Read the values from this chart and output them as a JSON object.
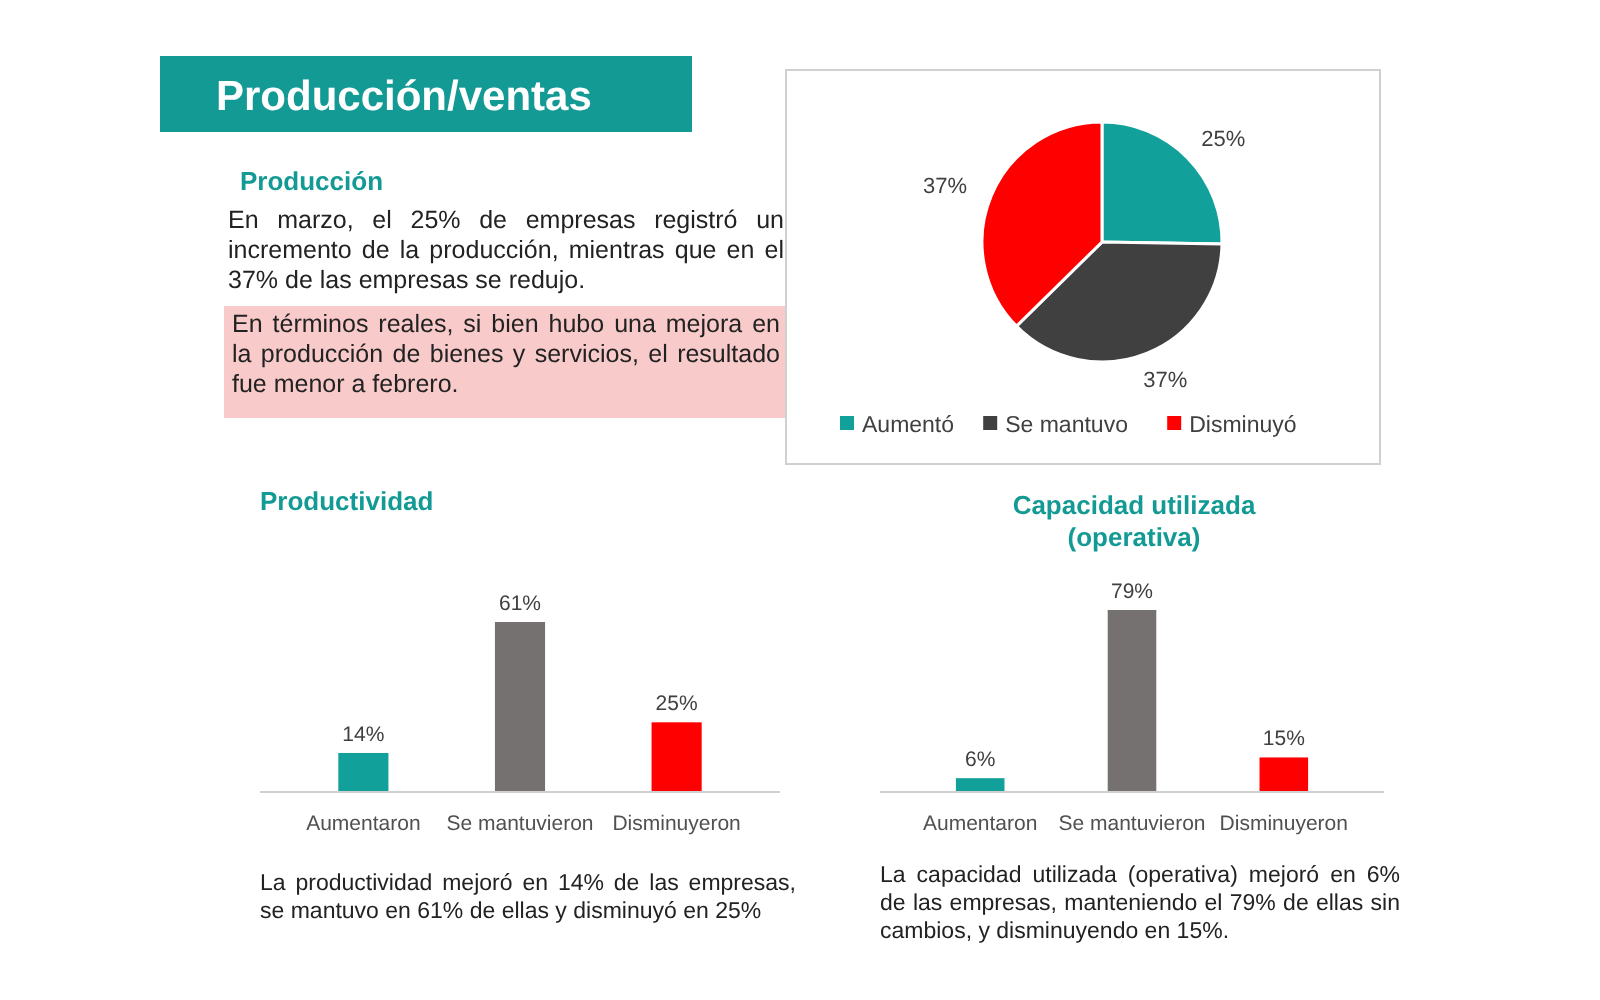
{
  "chart_data": [
    {
      "type": "other",
      "title": "Producción/ventas",
      "subtitle": "Producción",
      "annotations": [
        "En marzo, el 25% de empresas registró un incremento de la producción, mientras que en el 37% de las empresas se redujo.",
        "En términos reales, si bien hubo una mejora en la producción de bienes y servicios, el resultado fue menor a febrero."
      ]
    },
    {
      "type": "pie",
      "categories": [
        "Aumentó",
        "Se mantuvo",
        "Disminuyó"
      ],
      "values": [
        25,
        37,
        37
      ],
      "value_labels": [
        "25%",
        "37%",
        "37%"
      ],
      "colors": [
        "#12a09a",
        "#404040",
        "#ff0000"
      ],
      "legend": "bottom"
    },
    {
      "type": "bar",
      "title": "Productividad",
      "categories": [
        "Aumentaron",
        "Se mantuvieron",
        "Disminuyeron"
      ],
      "values": [
        14,
        61,
        25
      ],
      "value_labels": [
        "14%",
        "61%",
        "25%"
      ],
      "colors": [
        "#12a09a",
        "#767171",
        "#ff0000"
      ],
      "annotations": [
        "La productividad mejoró en 14% de las empresas, se mantuvo en 61% de ellas y disminuyó en 25%"
      ]
    },
    {
      "type": "bar",
      "title": "Capacidad utilizada\n(operativa)",
      "categories": [
        "Aumentaron",
        "Se mantuvieron",
        "Disminuyeron"
      ],
      "values": [
        6,
        79,
        15
      ],
      "value_labels": [
        "6%",
        "79%",
        "15%"
      ],
      "colors": [
        "#12a09a",
        "#767171",
        "#ff0000"
      ],
      "annotations": [
        "La capacidad utilizada (operativa) mejoró en 6% de las empresas, manteniendo el 79% de ellas sin cambios, y disminuyendo en 15%."
      ]
    }
  ]
}
